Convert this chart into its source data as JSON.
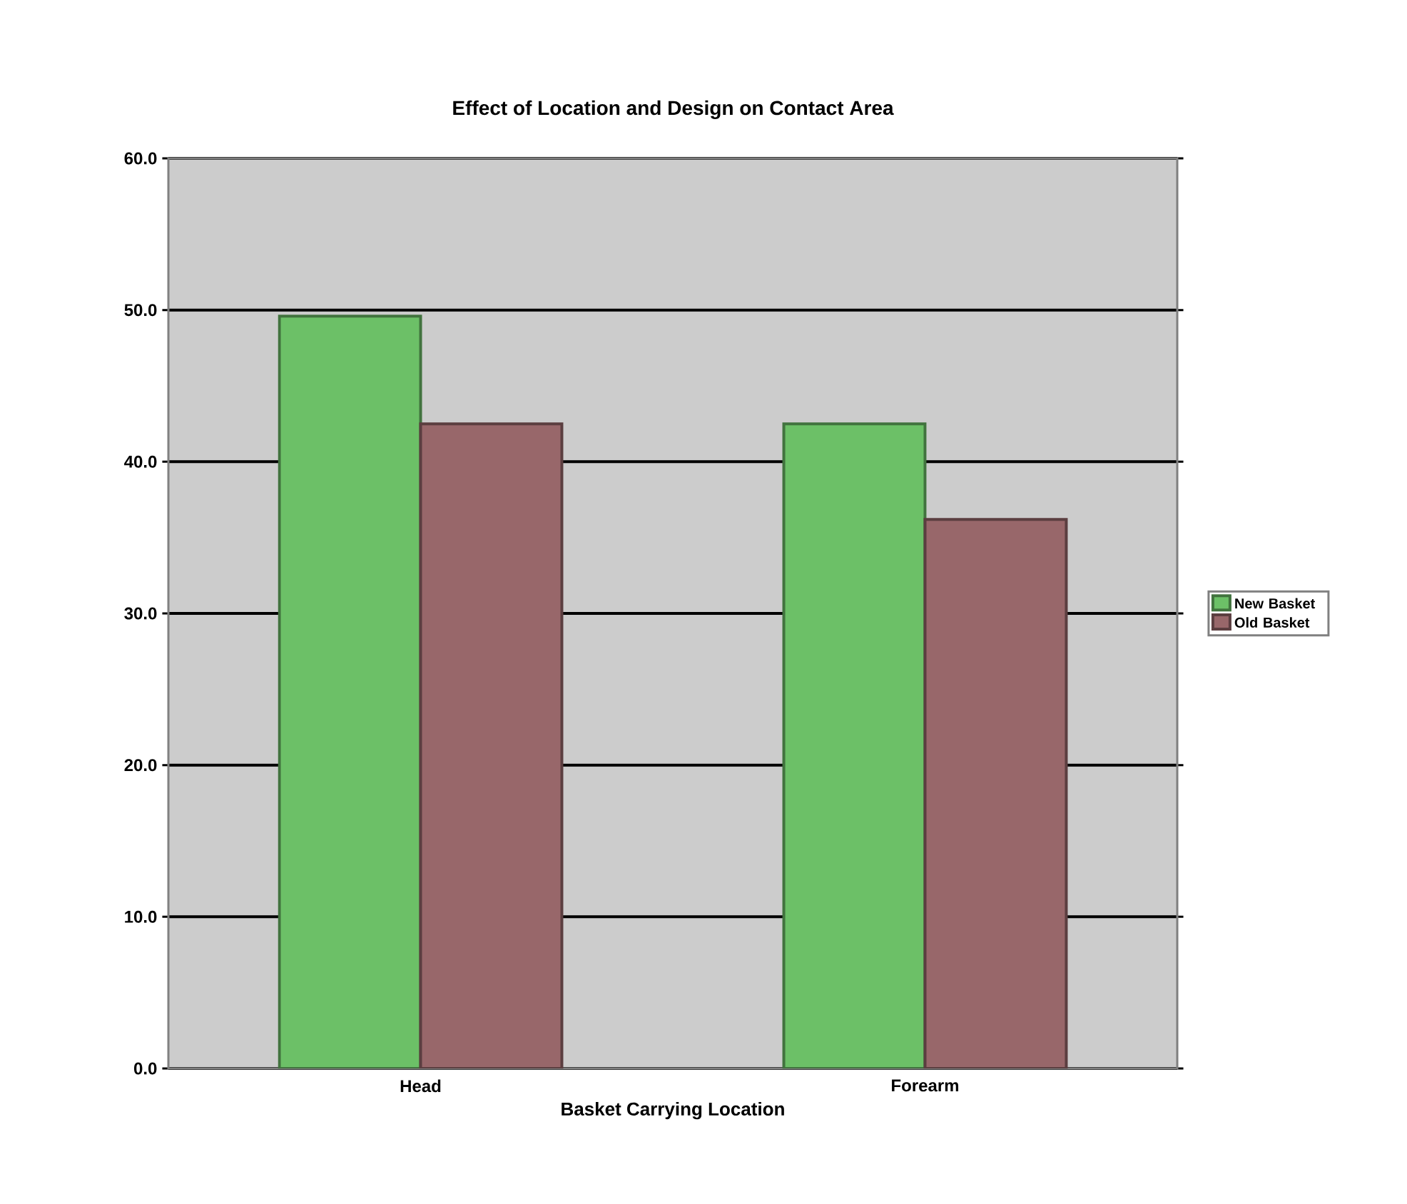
{
  "chart_data": {
    "type": "bar",
    "title": "Effect of Location and Design on Contact Area",
    "xlabel": "Basket Carrying Location",
    "categories": [
      "Head",
      "Forearm"
    ],
    "series": [
      {
        "name": "New Basket",
        "color": "#6cc067",
        "values": [
          49.6,
          42.5
        ]
      },
      {
        "name": "Old Basket",
        "color": "#98676a",
        "values": [
          42.5,
          36.2
        ]
      }
    ],
    "ylim": [
      0,
      60
    ],
    "yticks": [
      {
        "value": 0,
        "label": "0.0"
      },
      {
        "value": 10,
        "label": "10.0"
      },
      {
        "value": 20,
        "label": "20.0"
      },
      {
        "value": 30,
        "label": "30.0"
      },
      {
        "value": 40,
        "label": "40.0"
      },
      {
        "value": 50,
        "label": "50.0"
      },
      {
        "value": 60,
        "label": "60.0"
      }
    ],
    "grid": "y",
    "legend": "right"
  }
}
